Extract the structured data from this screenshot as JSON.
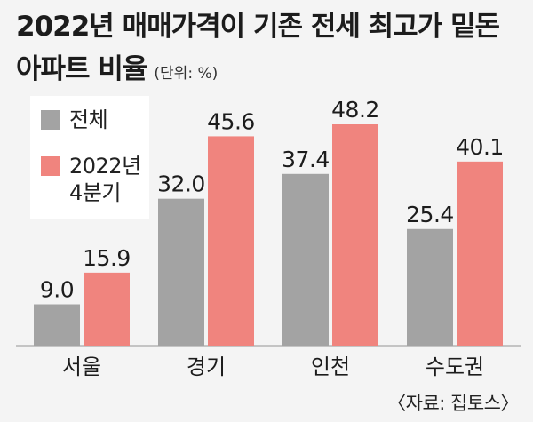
{
  "header": {
    "title_line1": "2022년 매매가격이 기존 전세 최고가 밑돈",
    "title_line2": "아파트 비율",
    "unit": "(단위: %)"
  },
  "source": "〈자료: 집토스〉",
  "colors": {
    "series_total": "#a3a3a3",
    "series_2022q4": "#f0847e",
    "background": "#f4f4f4",
    "axis": "#333333"
  },
  "chart_data": {
    "type": "bar",
    "categories": [
      "서울",
      "경기",
      "인천",
      "수도권"
    ],
    "series": [
      {
        "name": "전체",
        "values": [
          9.0,
          32.0,
          37.4,
          25.4
        ]
      },
      {
        "name": "2022년\n4분기",
        "values": [
          15.9,
          45.6,
          48.2,
          40.1
        ]
      }
    ],
    "data_labels": [
      [
        "9.0",
        "32.0",
        "37.4",
        "25.4"
      ],
      [
        "15.9",
        "45.6",
        "48.2",
        "40.1"
      ]
    ],
    "ylim": [
      0,
      60
    ],
    "grid": false,
    "legend_position": "top-left"
  }
}
